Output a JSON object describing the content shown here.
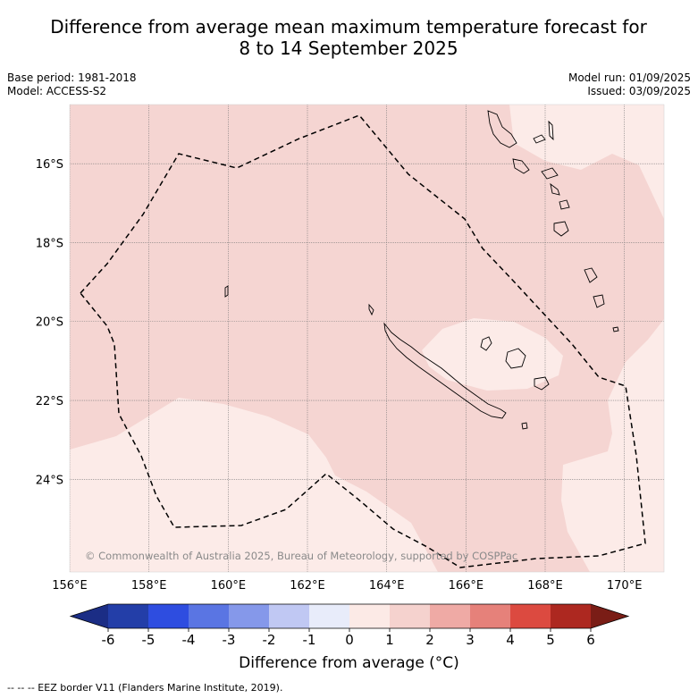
{
  "title": {
    "line1": "Difference from average mean maximum temperature forecast for",
    "line2": "8 to 14 September 2025"
  },
  "meta": {
    "base_period": "Base period: 1981-2018",
    "model": "Model: ACCESS-S2",
    "model_run": "Model run: 01/09/2025",
    "issued": "Issued: 03/09/2025"
  },
  "map": {
    "lon_range": [
      156,
      171
    ],
    "lat_range": [
      -26.35,
      -14.5
    ],
    "lon_ticks": [
      {
        "value": 156,
        "label": "156°E"
      },
      {
        "value": 158,
        "label": "158°E"
      },
      {
        "value": 160,
        "label": "160°E"
      },
      {
        "value": 162,
        "label": "162°E"
      },
      {
        "value": 164,
        "label": "164°E"
      },
      {
        "value": 166,
        "label": "166°E"
      },
      {
        "value": 168,
        "label": "168°E"
      },
      {
        "value": 170,
        "label": "170°E"
      }
    ],
    "lat_ticks": [
      {
        "value": -16,
        "label": "16°S"
      },
      {
        "value": -18,
        "label": "18°S"
      },
      {
        "value": -20,
        "label": "20°S"
      },
      {
        "value": -22,
        "label": "22°S"
      },
      {
        "value": -24,
        "label": "24°S"
      }
    ],
    "fill_colors": {
      "anomaly_0_1": "#fcebe8",
      "anomaly_1_2": "#f5d5d2",
      "coast": "#000000"
    },
    "copyright": "© Commonwealth of Australia 2025, Bureau of Meteorology, supported by COSPPac"
  },
  "colorbar": {
    "label": "Difference from average (°C)",
    "ticks": [
      "-6",
      "-5",
      "-4",
      "-3",
      "-2",
      "-1",
      "0",
      "1",
      "2",
      "3",
      "4",
      "5",
      "6"
    ],
    "colors": [
      "#233ea8",
      "#2e4de0",
      "#5a75e3",
      "#8598ea",
      "#c0c8f3",
      "#e8ecfa",
      "#fceae6",
      "#f5d2ce",
      "#efaaa5",
      "#e6817a",
      "#dc4a40",
      "#ad2820"
    ],
    "under_color": "#1b2d85",
    "over_color": "#7a1d16"
  },
  "footnote": "--  --  -- EEZ border V11 (Flanders Marine Institute, 2019)."
}
